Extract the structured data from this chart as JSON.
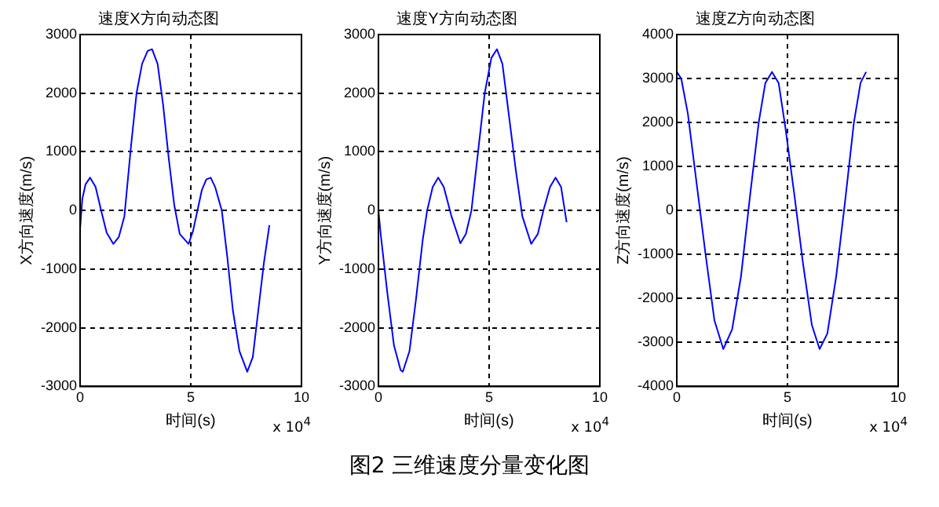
{
  "chart_data": [
    {
      "type": "line",
      "title": "速度X方向动态图",
      "xlabel": "时间(s)",
      "ylabel": "X方向速度(m/s)",
      "grid": true,
      "marker": "none",
      "line_style": "solid",
      "annotations": [
        "x 10$^{4}$"
      ],
      "xlim": [
        0,
        10
      ],
      "xticks": [
        0,
        5,
        10
      ],
      "ylim": [
        -3000,
        3000
      ],
      "yticks": [
        -3000,
        -2000,
        -1000,
        0,
        1000,
        2000,
        3000
      ],
      "x": [
        0,
        0.1,
        0.25,
        0.45,
        0.7,
        0.95,
        1.2,
        1.5,
        1.75,
        2.0,
        2.1,
        2.3,
        2.55,
        2.8,
        3.05,
        3.25,
        3.5,
        3.75,
        4.0,
        4.25,
        4.5,
        4.9,
        5.1,
        5.3,
        5.5,
        5.7,
        5.9,
        6.1,
        6.4,
        6.65,
        6.9,
        7.2,
        7.55,
        7.8,
        8.05,
        8.3,
        8.55
      ],
      "series": [
        {
          "color": "#0000ff",
          "values": [
            -300,
            200,
            450,
            560,
            400,
            0,
            -380,
            -570,
            -450,
            -100,
            300,
            1100,
            2000,
            2500,
            2720,
            2750,
            2500,
            1800,
            900,
            100,
            -400,
            -570,
            -350,
            0,
            350,
            530,
            560,
            400,
            0,
            -800,
            -1700,
            -2400,
            -2750,
            -2500,
            -1700,
            -900,
            -250
          ]
        }
      ]
    },
    {
      "type": "line",
      "title": "速度Y方向动态图",
      "xlabel": "时间(s)",
      "ylabel": "Y方向速度(m/s)",
      "grid": true,
      "marker": "none",
      "line_style": "solid",
      "annotations": [
        "x 10$^{4}$",
        "图2  三维速度分量变化图"
      ],
      "xlim": [
        0,
        10
      ],
      "xticks": [
        0,
        5,
        10
      ],
      "ylim": [
        -3000,
        3000
      ],
      "yticks": [
        -3000,
        -2000,
        -1000,
        0,
        1000,
        2000,
        3000
      ],
      "x": [
        0,
        0.1,
        0.4,
        0.7,
        1.0,
        1.1,
        1.4,
        1.7,
        2.0,
        2.2,
        2.45,
        2.7,
        2.95,
        3.3,
        3.7,
        3.95,
        4.2,
        4.5,
        4.8,
        5.1,
        5.35,
        5.6,
        5.9,
        6.2,
        6.5,
        6.9,
        7.2,
        7.45,
        7.75,
        8.0,
        8.25,
        8.5
      ],
      "series": [
        {
          "color": "#0000ff",
          "values": [
            0,
            -400,
            -1400,
            -2300,
            -2720,
            -2750,
            -2400,
            -1500,
            -500,
            0,
            400,
            560,
            400,
            -100,
            -560,
            -400,
            0,
            1000,
            2000,
            2600,
            2750,
            2500,
            1600,
            700,
            -100,
            -570,
            -400,
            0,
            400,
            560,
            400,
            -200
          ]
        }
      ]
    },
    {
      "type": "line",
      "title": "速度Z方向动态图",
      "xlabel": "时间(s)",
      "ylabel": "Z方向速度(m/s)",
      "grid": true,
      "marker": "none",
      "line_style": "solid",
      "annotations": [
        "x 10$^{4}$"
      ],
      "xlim": [
        0,
        10
      ],
      "xticks": [
        0,
        5,
        10
      ],
      "ylim": [
        -4000,
        4000
      ],
      "yticks": [
        -4000,
        -3000,
        -2000,
        -1000,
        0,
        1000,
        2000,
        3000,
        4000
      ],
      "x": [
        0,
        0.2,
        0.5,
        0.9,
        1.3,
        1.7,
        2.1,
        2.5,
        2.9,
        3.3,
        3.7,
        4.0,
        4.3,
        4.6,
        4.9,
        5.3,
        5.7,
        6.1,
        6.45,
        6.8,
        7.2,
        7.6,
        8.0,
        8.3,
        8.55
      ],
      "series": [
        {
          "color": "#0000ff",
          "values": [
            3150,
            3000,
            2200,
            600,
            -1000,
            -2500,
            -3150,
            -2700,
            -1500,
            300,
            2000,
            2900,
            3150,
            2900,
            1900,
            400,
            -1200,
            -2600,
            -3150,
            -2800,
            -1500,
            200,
            2000,
            2900,
            3150
          ]
        }
      ]
    }
  ]
}
